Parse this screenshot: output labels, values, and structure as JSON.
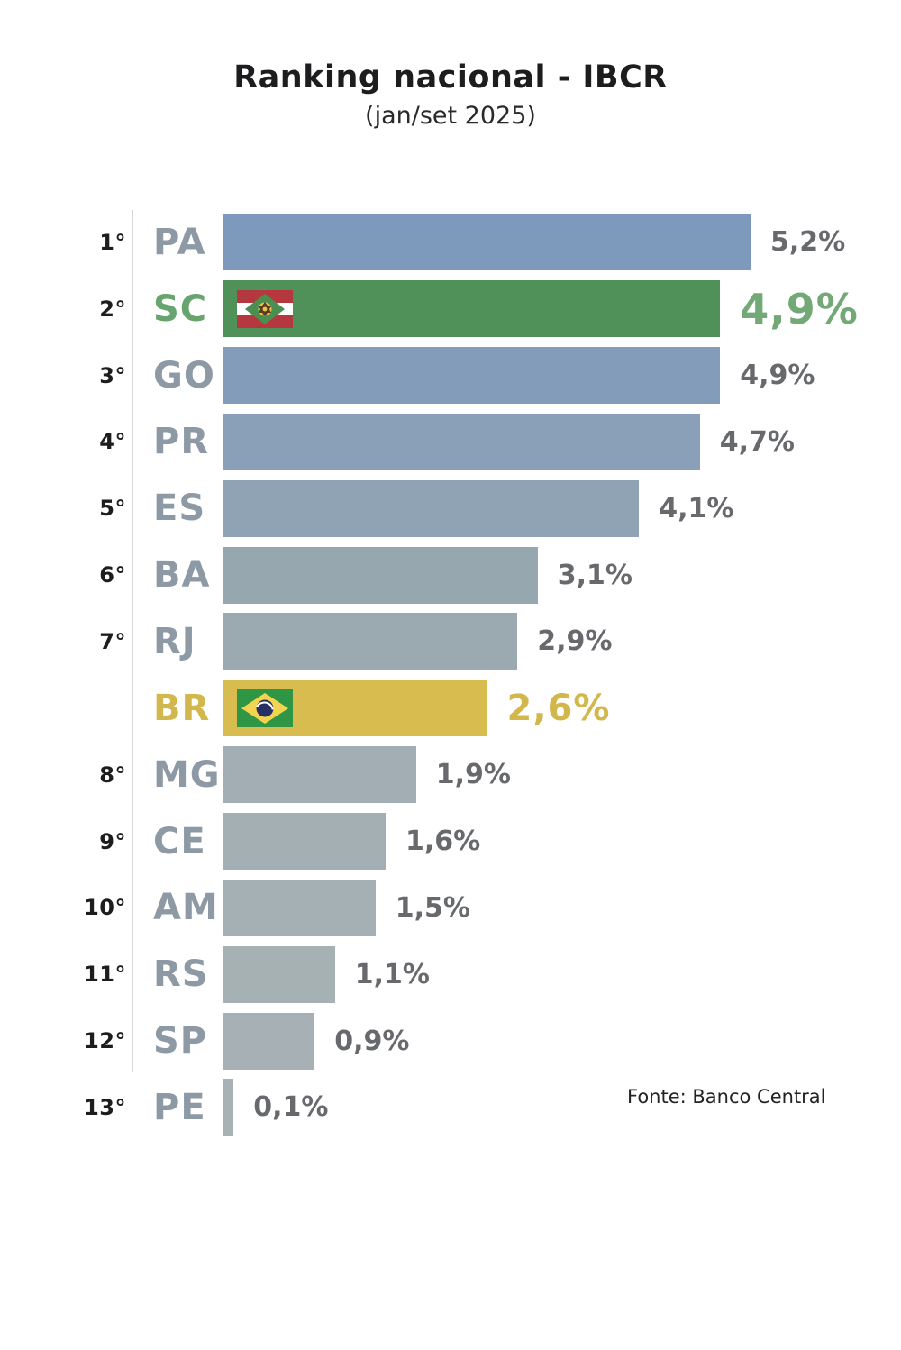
{
  "header": {
    "title": "Ranking nacional - IBCR",
    "subtitle": "(jan/set 2025)"
  },
  "source": "Fonte: Banco Central",
  "chart_data": {
    "type": "bar",
    "orientation": "horizontal",
    "title": "Ranking nacional - IBCR",
    "subtitle": "(jan/set 2025)",
    "source": "Fonte: Banco Central",
    "value_unit": "%",
    "xlim": [
      0,
      5.5
    ],
    "grid": false,
    "legend": "none",
    "highlight_colors": {
      "sc_green": "#4f9158",
      "br_yellow": "#d9bc50",
      "default_blue_gray": "#7d99bc"
    },
    "rows": [
      {
        "rank": "1°",
        "label": "PA",
        "value": 5.2,
        "value_label": "5,2%",
        "bar_color": "#7d99bc",
        "label_color": "#8d9aa6",
        "value_color": "#67696c",
        "flag": ""
      },
      {
        "rank": "2°",
        "label": "SC",
        "value": 4.9,
        "value_label": "4,9%",
        "bar_color": "#4f9158",
        "label_color": "#68a46e",
        "value_color": "#72a977",
        "flag": "santa-catarina"
      },
      {
        "rank": "3°",
        "label": "GO",
        "value": 4.9,
        "value_label": "4,9%",
        "bar_color": "#829cba",
        "label_color": "#8d9aa6",
        "value_color": "#67696c",
        "flag": ""
      },
      {
        "rank": "4°",
        "label": "PR",
        "value": 4.7,
        "value_label": "4,7%",
        "bar_color": "#89a0b8",
        "label_color": "#8d9aa6",
        "value_color": "#67696c",
        "flag": ""
      },
      {
        "rank": "5°",
        "label": "ES",
        "value": 4.1,
        "value_label": "4,1%",
        "bar_color": "#90a3b4",
        "label_color": "#8d9aa6",
        "value_color": "#67696c",
        "flag": ""
      },
      {
        "rank": "6°",
        "label": "BA",
        "value": 3.1,
        "value_label": "3,1%",
        "bar_color": "#97a7b0",
        "label_color": "#8d9aa6",
        "value_color": "#67696c",
        "flag": ""
      },
      {
        "rank": "7°",
        "label": "RJ",
        "value": 2.9,
        "value_label": "2,9%",
        "bar_color": "#9baab1",
        "label_color": "#8d9aa6",
        "value_color": "#67696c",
        "flag": ""
      },
      {
        "rank": "",
        "label": "BR",
        "value": 2.6,
        "value_label": "2,6%",
        "bar_color": "#d9bc50",
        "label_color": "#d2b74c",
        "value_color": "#d2b74c",
        "flag": "brazil"
      },
      {
        "rank": "8°",
        "label": "MG",
        "value": 1.9,
        "value_label": "1,9%",
        "bar_color": "#a2aeb3",
        "label_color": "#8d9aa6",
        "value_color": "#67696c",
        "flag": ""
      },
      {
        "rank": "9°",
        "label": "CE",
        "value": 1.6,
        "value_label": "1,6%",
        "bar_color": "#a4afb4",
        "label_color": "#8d9aa6",
        "value_color": "#67696c",
        "flag": ""
      },
      {
        "rank": "10°",
        "label": "AM",
        "value": 1.5,
        "value_label": "1,5%",
        "bar_color": "#a5b0b4",
        "label_color": "#8d9aa6",
        "value_color": "#67696c",
        "flag": ""
      },
      {
        "rank": "11°",
        "label": "RS",
        "value": 1.1,
        "value_label": "1,1%",
        "bar_color": "#a6b1b4",
        "label_color": "#8d9aa6",
        "value_color": "#67696c",
        "flag": ""
      },
      {
        "rank": "12°",
        "label": "SP",
        "value": 0.9,
        "value_label": "0,9%",
        "bar_color": "#a7b1b5",
        "label_color": "#8d9aa6",
        "value_color": "#67696c",
        "flag": ""
      },
      {
        "rank": "13°",
        "label": "PE",
        "value": 0.1,
        "value_label": "0,1%",
        "bar_color": "#a8b2b5",
        "label_color": "#8d9aa6",
        "value_color": "#67696c",
        "flag": ""
      }
    ]
  }
}
